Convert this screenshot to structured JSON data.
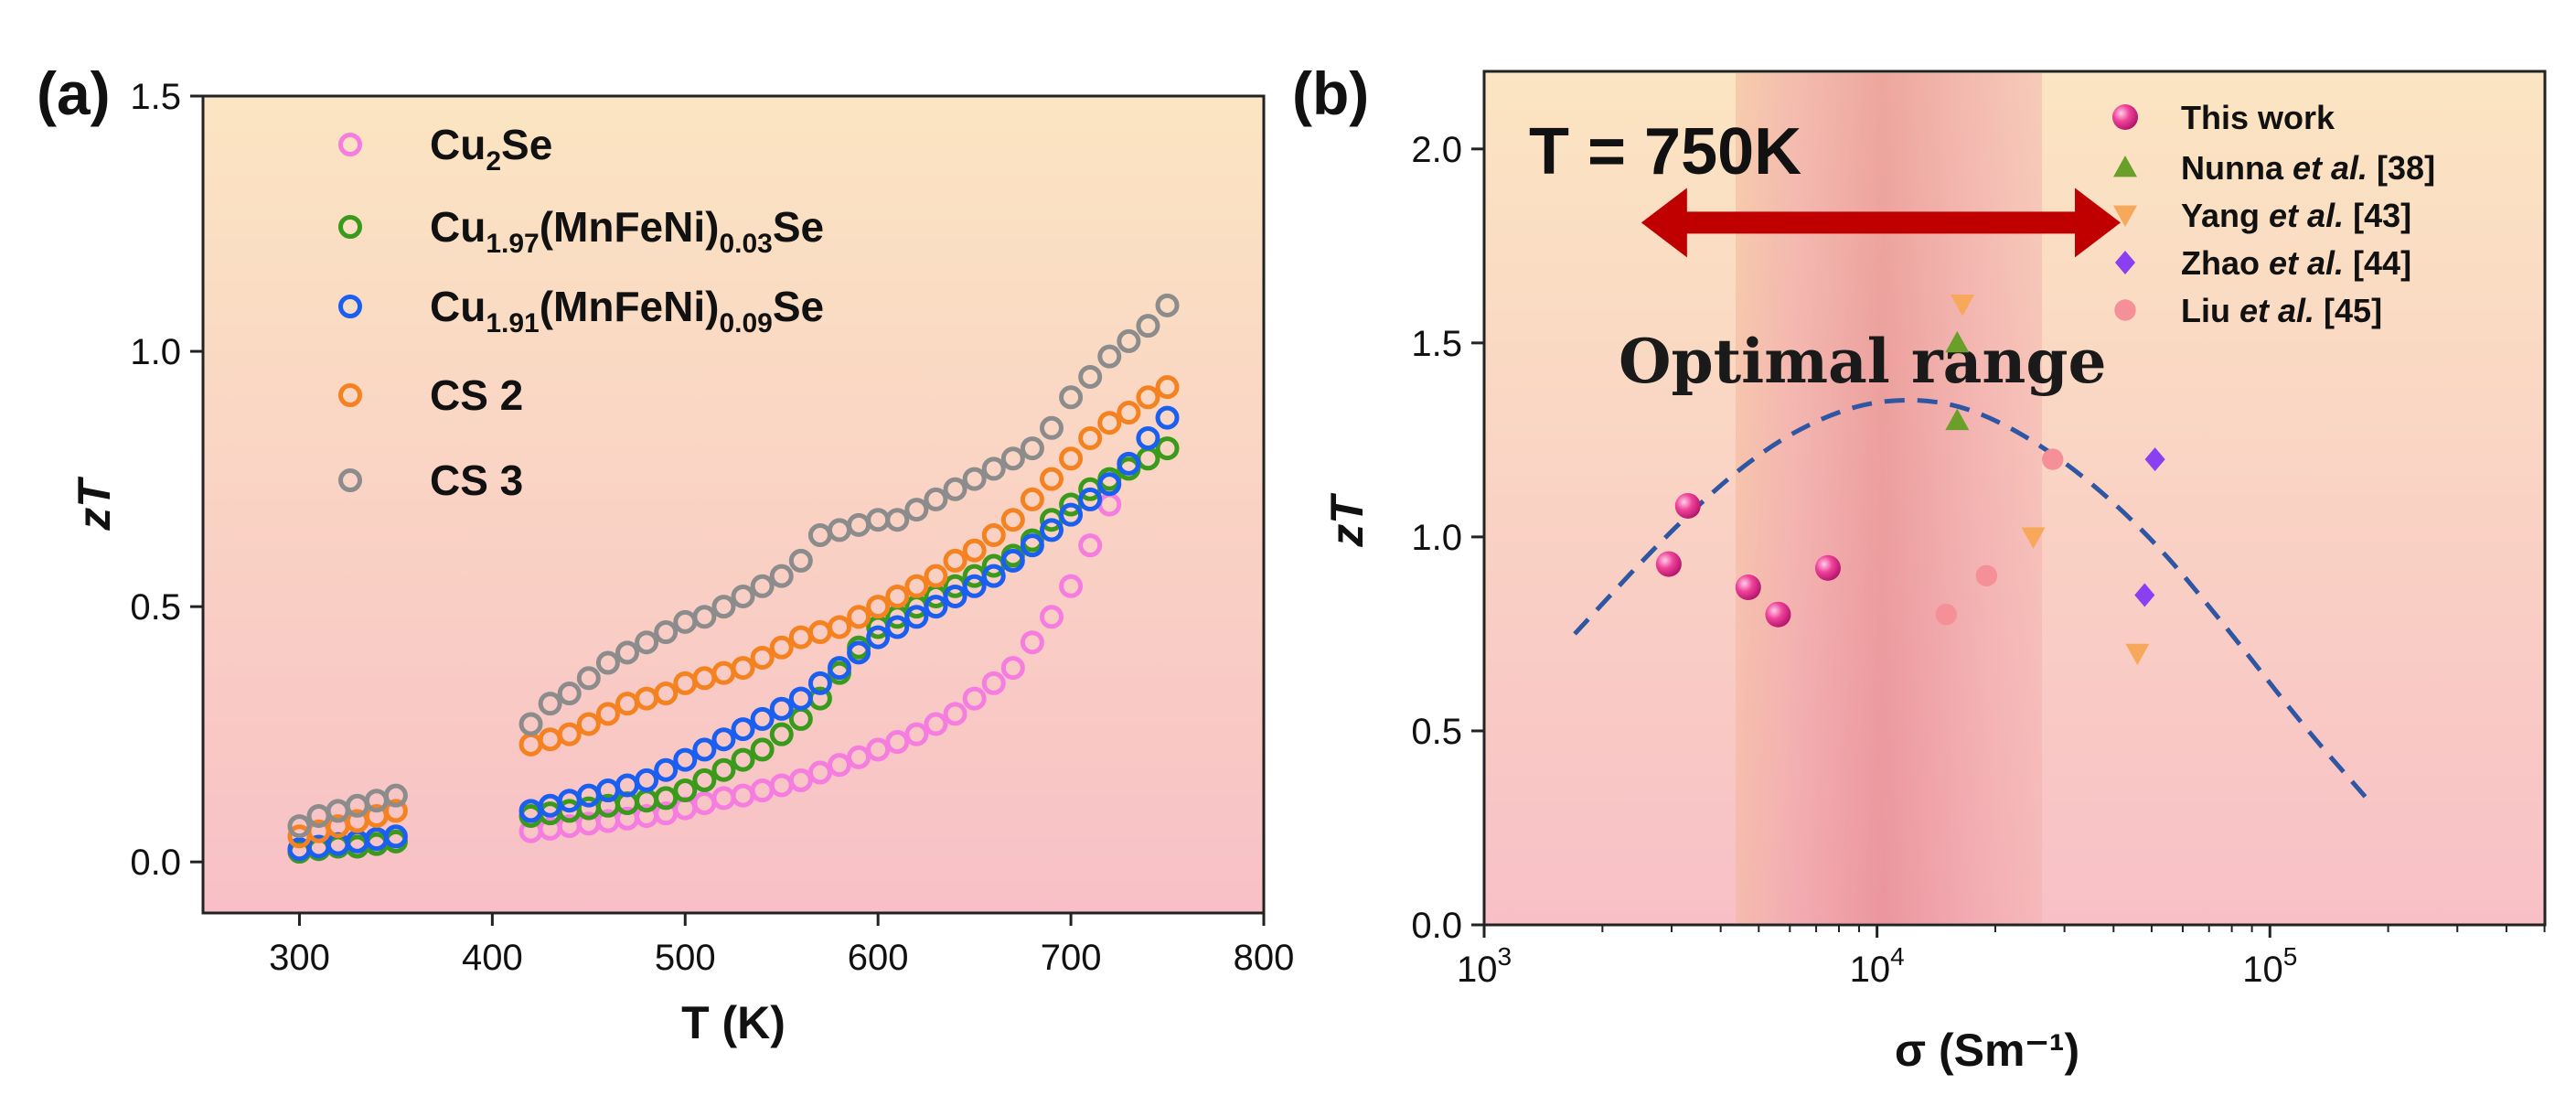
{
  "chart_data": [
    {
      "type": "scatter",
      "panel_label": "(a)",
      "xlabel": "T (K)",
      "ylabel": "zT",
      "xlim": [
        250,
        800
      ],
      "ylim": [
        -0.1,
        1.5
      ],
      "xticks": [
        "300",
        "400",
        "500",
        "600",
        "700",
        "800"
      ],
      "yticks": [
        "0.0",
        "0.5",
        "1.0",
        "1.5"
      ],
      "legend_position": "top-left",
      "grid": false,
      "series": [
        {
          "name": "Cu₂Se",
          "base": "Cu",
          "sub1": "2",
          "mid": "Se",
          "sub2": "",
          "tail": "",
          "color": "#f57de0",
          "low": [
            [
              300,
              0.02
            ],
            [
              310,
              0.025
            ],
            [
              320,
              0.03
            ],
            [
              330,
              0.03
            ],
            [
              340,
              0.035
            ],
            [
              350,
              0.04
            ]
          ],
          "high": [
            [
              420,
              0.06
            ],
            [
              430,
              0.065
            ],
            [
              440,
              0.07
            ],
            [
              450,
              0.075
            ],
            [
              460,
              0.08
            ],
            [
              470,
              0.085
            ],
            [
              480,
              0.09
            ],
            [
              490,
              0.095
            ],
            [
              500,
              0.105
            ],
            [
              510,
              0.115
            ],
            [
              520,
              0.125
            ],
            [
              530,
              0.13
            ],
            [
              540,
              0.14
            ],
            [
              550,
              0.15
            ],
            [
              560,
              0.16
            ],
            [
              570,
              0.175
            ],
            [
              580,
              0.19
            ],
            [
              590,
              0.205
            ],
            [
              600,
              0.22
            ],
            [
              610,
              0.235
            ],
            [
              620,
              0.25
            ],
            [
              630,
              0.27
            ],
            [
              640,
              0.29
            ],
            [
              650,
              0.32
            ],
            [
              660,
              0.35
            ],
            [
              670,
              0.38
            ],
            [
              680,
              0.43
            ],
            [
              690,
              0.48
            ],
            [
              700,
              0.54
            ],
            [
              710,
              0.62
            ],
            [
              720,
              0.7
            ]
          ]
        },
        {
          "name": "Cu1.97(MnFeNi)0.03Se",
          "base": "Cu",
          "sub1": "1.97",
          "mid": "(MnFeNi)",
          "sub2": "0.03",
          "tail": "Se",
          "color": "#3a9a1c",
          "low": [
            [
              300,
              0.02
            ],
            [
              310,
              0.025
            ],
            [
              320,
              0.03
            ],
            [
              330,
              0.03
            ],
            [
              340,
              0.035
            ],
            [
              350,
              0.04
            ]
          ],
          "high": [
            [
              420,
              0.09
            ],
            [
              430,
              0.095
            ],
            [
              440,
              0.1
            ],
            [
              450,
              0.105
            ],
            [
              460,
              0.11
            ],
            [
              470,
              0.115
            ],
            [
              480,
              0.12
            ],
            [
              490,
              0.125
            ],
            [
              500,
              0.14
            ],
            [
              510,
              0.16
            ],
            [
              520,
              0.18
            ],
            [
              530,
              0.2
            ],
            [
              540,
              0.22
            ],
            [
              550,
              0.25
            ],
            [
              560,
              0.28
            ],
            [
              570,
              0.32
            ],
            [
              580,
              0.37
            ],
            [
              590,
              0.42
            ],
            [
              600,
              0.46
            ],
            [
              610,
              0.48
            ],
            [
              620,
              0.5
            ],
            [
              630,
              0.52
            ],
            [
              640,
              0.54
            ],
            [
              650,
              0.56
            ],
            [
              660,
              0.58
            ],
            [
              670,
              0.6
            ],
            [
              680,
              0.63
            ],
            [
              690,
              0.67
            ],
            [
              700,
              0.7
            ],
            [
              710,
              0.73
            ],
            [
              720,
              0.75
            ],
            [
              730,
              0.77
            ],
            [
              740,
              0.79
            ],
            [
              750,
              0.81
            ]
          ]
        },
        {
          "name": "Cu1.91(MnFeNi)0.09Se",
          "base": "Cu",
          "sub1": "1.91",
          "mid": "(MnFeNi)",
          "sub2": "0.09",
          "tail": "Se",
          "color": "#1a5ff0",
          "low": [
            [
              300,
              0.025
            ],
            [
              310,
              0.03
            ],
            [
              320,
              0.035
            ],
            [
              330,
              0.04
            ],
            [
              340,
              0.045
            ],
            [
              350,
              0.05
            ]
          ],
          "high": [
            [
              420,
              0.1
            ],
            [
              430,
              0.11
            ],
            [
              440,
              0.12
            ],
            [
              450,
              0.13
            ],
            [
              460,
              0.14
            ],
            [
              470,
              0.15
            ],
            [
              480,
              0.16
            ],
            [
              490,
              0.18
            ],
            [
              500,
              0.2
            ],
            [
              510,
              0.22
            ],
            [
              520,
              0.24
            ],
            [
              530,
              0.26
            ],
            [
              540,
              0.28
            ],
            [
              550,
              0.3
            ],
            [
              560,
              0.32
            ],
            [
              570,
              0.35
            ],
            [
              580,
              0.38
            ],
            [
              590,
              0.41
            ],
            [
              600,
              0.44
            ],
            [
              610,
              0.46
            ],
            [
              620,
              0.48
            ],
            [
              630,
              0.5
            ],
            [
              640,
              0.52
            ],
            [
              650,
              0.54
            ],
            [
              660,
              0.56
            ],
            [
              670,
              0.59
            ],
            [
              680,
              0.62
            ],
            [
              690,
              0.65
            ],
            [
              700,
              0.68
            ],
            [
              710,
              0.71
            ],
            [
              720,
              0.74
            ],
            [
              730,
              0.78
            ],
            [
              740,
              0.83
            ],
            [
              750,
              0.87
            ]
          ]
        },
        {
          "name": "CS 2",
          "base": "CS 2",
          "sub1": "",
          "mid": "",
          "sub2": "",
          "tail": "",
          "color": "#f58220",
          "low": [
            [
              300,
              0.05
            ],
            [
              310,
              0.06
            ],
            [
              320,
              0.07
            ],
            [
              330,
              0.08
            ],
            [
              340,
              0.09
            ],
            [
              350,
              0.1
            ]
          ],
          "high": [
            [
              420,
              0.23
            ],
            [
              430,
              0.24
            ],
            [
              440,
              0.25
            ],
            [
              450,
              0.27
            ],
            [
              460,
              0.29
            ],
            [
              470,
              0.31
            ],
            [
              480,
              0.32
            ],
            [
              490,
              0.33
            ],
            [
              500,
              0.35
            ],
            [
              510,
              0.36
            ],
            [
              520,
              0.37
            ],
            [
              530,
              0.38
            ],
            [
              540,
              0.4
            ],
            [
              550,
              0.42
            ],
            [
              560,
              0.44
            ],
            [
              570,
              0.45
            ],
            [
              580,
              0.46
            ],
            [
              590,
              0.48
            ],
            [
              600,
              0.5
            ],
            [
              610,
              0.52
            ],
            [
              620,
              0.54
            ],
            [
              630,
              0.56
            ],
            [
              640,
              0.59
            ],
            [
              650,
              0.61
            ],
            [
              660,
              0.64
            ],
            [
              670,
              0.67
            ],
            [
              680,
              0.71
            ],
            [
              690,
              0.75
            ],
            [
              700,
              0.79
            ],
            [
              710,
              0.83
            ],
            [
              720,
              0.86
            ],
            [
              730,
              0.88
            ],
            [
              740,
              0.91
            ],
            [
              750,
              0.93
            ]
          ]
        },
        {
          "name": "CS 3",
          "base": "CS 3",
          "sub1": "",
          "mid": "",
          "sub2": "",
          "tail": "",
          "color": "#8c8c8c",
          "low": [
            [
              300,
              0.07
            ],
            [
              310,
              0.09
            ],
            [
              320,
              0.1
            ],
            [
              330,
              0.11
            ],
            [
              340,
              0.12
            ],
            [
              350,
              0.13
            ]
          ],
          "high": [
            [
              420,
              0.27
            ],
            [
              430,
              0.31
            ],
            [
              440,
              0.33
            ],
            [
              450,
              0.36
            ],
            [
              460,
              0.39
            ],
            [
              470,
              0.41
            ],
            [
              480,
              0.43
            ],
            [
              490,
              0.45
            ],
            [
              500,
              0.47
            ],
            [
              510,
              0.48
            ],
            [
              520,
              0.5
            ],
            [
              530,
              0.52
            ],
            [
              540,
              0.54
            ],
            [
              550,
              0.56
            ],
            [
              560,
              0.59
            ],
            [
              570,
              0.64
            ],
            [
              580,
              0.65
            ],
            [
              590,
              0.66
            ],
            [
              600,
              0.67
            ],
            [
              610,
              0.67
            ],
            [
              620,
              0.69
            ],
            [
              630,
              0.71
            ],
            [
              640,
              0.73
            ],
            [
              650,
              0.75
            ],
            [
              660,
              0.77
            ],
            [
              670,
              0.79
            ],
            [
              680,
              0.81
            ],
            [
              690,
              0.85
            ],
            [
              700,
              0.91
            ],
            [
              710,
              0.95
            ],
            [
              720,
              0.99
            ],
            [
              730,
              1.02
            ],
            [
              740,
              1.05
            ],
            [
              750,
              1.09
            ]
          ]
        }
      ]
    },
    {
      "type": "scatter",
      "panel_label": "(b)",
      "annotation_title": "T = 750K",
      "annotation_range": "Optimal range",
      "xlabel": "σ (Sm⁻¹)",
      "ylabel": "zT",
      "xscale": "log",
      "xlim_log10": [
        3,
        5.7
      ],
      "ylim": [
        0,
        2.2
      ],
      "xticks": [
        {
          "base": "10",
          "exp": "3",
          "log10": 3
        },
        {
          "base": "10",
          "exp": "4",
          "log10": 4
        },
        {
          "base": "10",
          "exp": "5",
          "log10": 5
        }
      ],
      "yticks": [
        "0.0",
        "0.5",
        "1.0",
        "1.5",
        "2.0"
      ],
      "optimal_range_log10": [
        3.64,
        4.42
      ],
      "arrow_range_log10": [
        3.4,
        4.62
      ],
      "arrow_zT": 1.81,
      "legend_position": "top-right",
      "series": [
        {
          "name": "This work",
          "author": "This work",
          "etal": "",
          "ref": "",
          "marker": "sphere",
          "color": "#f0439a",
          "points": [
            [
              2950,
              0.93
            ],
            [
              3300,
              1.08
            ],
            [
              4700,
              0.87
            ],
            [
              5600,
              0.8
            ],
            [
              7500,
              0.92
            ]
          ]
        },
        {
          "name": "Nunna et al. [38]",
          "author": "Nunna ",
          "etal": "et al.",
          "ref": " [38]",
          "marker": "triangle-up",
          "color": "#6aa02a",
          "points": [
            [
              16000,
              1.5
            ],
            [
              16000,
              1.3
            ]
          ]
        },
        {
          "name": "Yang et al. [43]",
          "author": "Yang ",
          "etal": "et al.",
          "ref": " [43]",
          "marker": "triangle-down",
          "color": "#f7a85a",
          "points": [
            [
              16500,
              1.6
            ],
            [
              25000,
              1.0
            ],
            [
              46000,
              0.7
            ]
          ]
        },
        {
          "name": "Zhao et al. [44]",
          "author": "Zhao ",
          "etal": "et al.",
          "ref": " [44]",
          "marker": "diamond",
          "color": "#8a3ff0",
          "points": [
            [
              51000,
              1.2
            ],
            [
              48000,
              0.85
            ]
          ]
        },
        {
          "name": "Liu et al. [45]",
          "author": "Liu ",
          "etal": "et al.",
          "ref": " [45]",
          "marker": "circle",
          "color": "#f58f98",
          "points": [
            [
              15000,
              0.8
            ],
            [
              19000,
              0.9
            ],
            [
              28000,
              1.2
            ]
          ]
        }
      ],
      "fit_curve": {
        "style": "dashed",
        "color": "#2f56a3",
        "points": [
          [
            1700,
            0.75
          ],
          [
            3000,
            1.02
          ],
          [
            5000,
            1.22
          ],
          [
            8000,
            1.33
          ],
          [
            12000,
            1.36
          ],
          [
            18000,
            1.33
          ],
          [
            30000,
            1.2
          ],
          [
            50000,
            1.0
          ],
          [
            80000,
            0.75
          ],
          [
            120000,
            0.52
          ],
          [
            175000,
            0.33
          ]
        ]
      }
    }
  ]
}
